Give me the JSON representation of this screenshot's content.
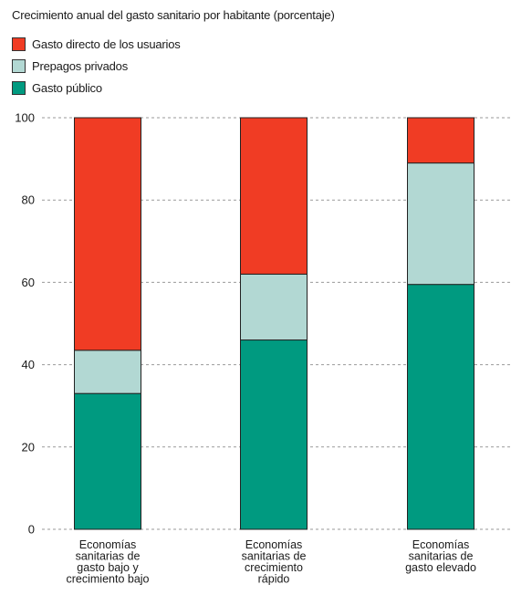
{
  "chart_data": {
    "type": "bar",
    "stacked": true,
    "title": "Crecimiento anual del gasto sanitario por habitante (porcentaje)",
    "xlabel": "",
    "ylabel": "",
    "ylim": [
      0,
      100
    ],
    "yticks": [
      0,
      20,
      40,
      60,
      80,
      100
    ],
    "grid": true,
    "legend_position": "top-left",
    "categories": [
      "Economías sanitarias de gasto bajo y crecimiento bajo",
      "Economías sanitarias de crecimiento rápido",
      "Economías sanitarias de gasto elevado"
    ],
    "category_lines": [
      [
        "Economías",
        "sanitarias de",
        "gasto bajo y",
        "crecimiento bajo"
      ],
      [
        "Economías",
        "sanitarias de",
        "crecimiento",
        "rápido"
      ],
      [
        "Economías",
        "sanitarias de",
        "gasto elevado"
      ]
    ],
    "series": [
      {
        "name": "Gasto público",
        "color": "#009a80",
        "values": [
          33,
          46,
          59.5
        ]
      },
      {
        "name": "Prepagos privados",
        "color": "#b2d8d3",
        "values": [
          10.5,
          16,
          29.5
        ]
      },
      {
        "name": "Gasto directo de los usuarios",
        "color": "#f03c24",
        "values": [
          56.5,
          38,
          11
        ]
      }
    ]
  },
  "legend": {
    "items": [
      {
        "label": "Gasto directo de los usuarios",
        "color": "#f03c24"
      },
      {
        "label": "Prepagos privados",
        "color": "#b2d8d3"
      },
      {
        "label": "Gasto público",
        "color": "#009a80"
      }
    ]
  }
}
